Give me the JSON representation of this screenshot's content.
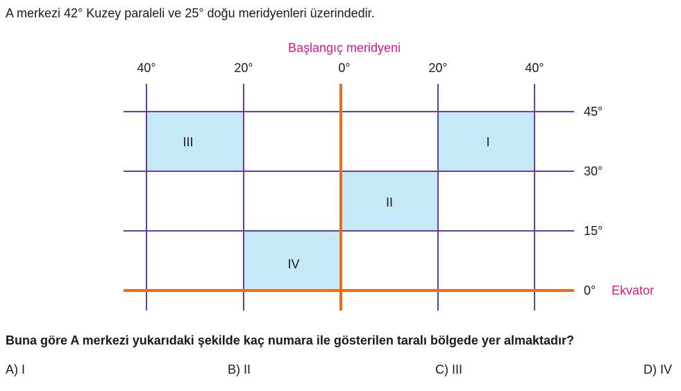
{
  "intro_text": "A merkezi 42° Kuzey paraleli ve 25° doğu meridyenleri üzerindedir.",
  "diagram": {
    "prime_meridian_label": "Başlangıç meridyeni",
    "equator_label": "Ekvator",
    "meridian_labels": [
      "40°",
      "20°",
      "0°",
      "20°",
      "40°"
    ],
    "parallel_labels": [
      "45°",
      "30°",
      "15°",
      "0°"
    ],
    "regions": [
      "I",
      "II",
      "III",
      "IV"
    ],
    "colors": {
      "grid": "#6a3d9a",
      "prime_and_equator": "#ee6a1f",
      "region_fill": "#c6e9f7",
      "accent_label": "#e0148c"
    }
  },
  "question_text": "Buna göre A merkezi yukarıdaki şekilde kaç numara ile gösterilen taralı bölgede yer almaktadır?",
  "options": [
    "A) I",
    "B) II",
    "C) III",
    "D) IV"
  ]
}
